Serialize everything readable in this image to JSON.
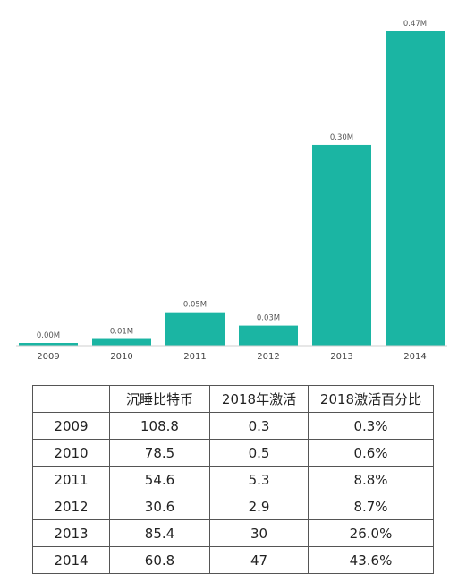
{
  "colors": {
    "bar": "#1bb5a3",
    "axis": "#cfcfcf",
    "label": "#555555"
  },
  "chart_data": {
    "type": "bar",
    "title": "",
    "xlabel": "",
    "ylabel": "",
    "categories": [
      "2009",
      "2010",
      "2011",
      "2012",
      "2013",
      "2014"
    ],
    "values": [
      0.0,
      0.01,
      0.05,
      0.03,
      0.3,
      0.47
    ],
    "data_labels": [
      "0.00M",
      "0.01M",
      "0.05M",
      "0.03M",
      "0.30M",
      "0.47M"
    ],
    "unit": "M",
    "ylim": [
      0,
      0.47
    ],
    "grid": false,
    "legend": "none"
  },
  "table": {
    "headers": [
      "",
      "沉睡比特币",
      "2018年激活",
      "2018激活百分比"
    ],
    "rows": [
      [
        "2009",
        "108.8",
        "0.3",
        "0.3%"
      ],
      [
        "2010",
        "78.5",
        "0.5",
        "0.6%"
      ],
      [
        "2011",
        "54.6",
        "5.3",
        "8.8%"
      ],
      [
        "2012",
        "30.6",
        "2.9",
        "8.7%"
      ],
      [
        "2013",
        "85.4",
        "30",
        "26.0%"
      ],
      [
        "2014",
        "60.8",
        "47",
        "43.6%"
      ]
    ]
  }
}
